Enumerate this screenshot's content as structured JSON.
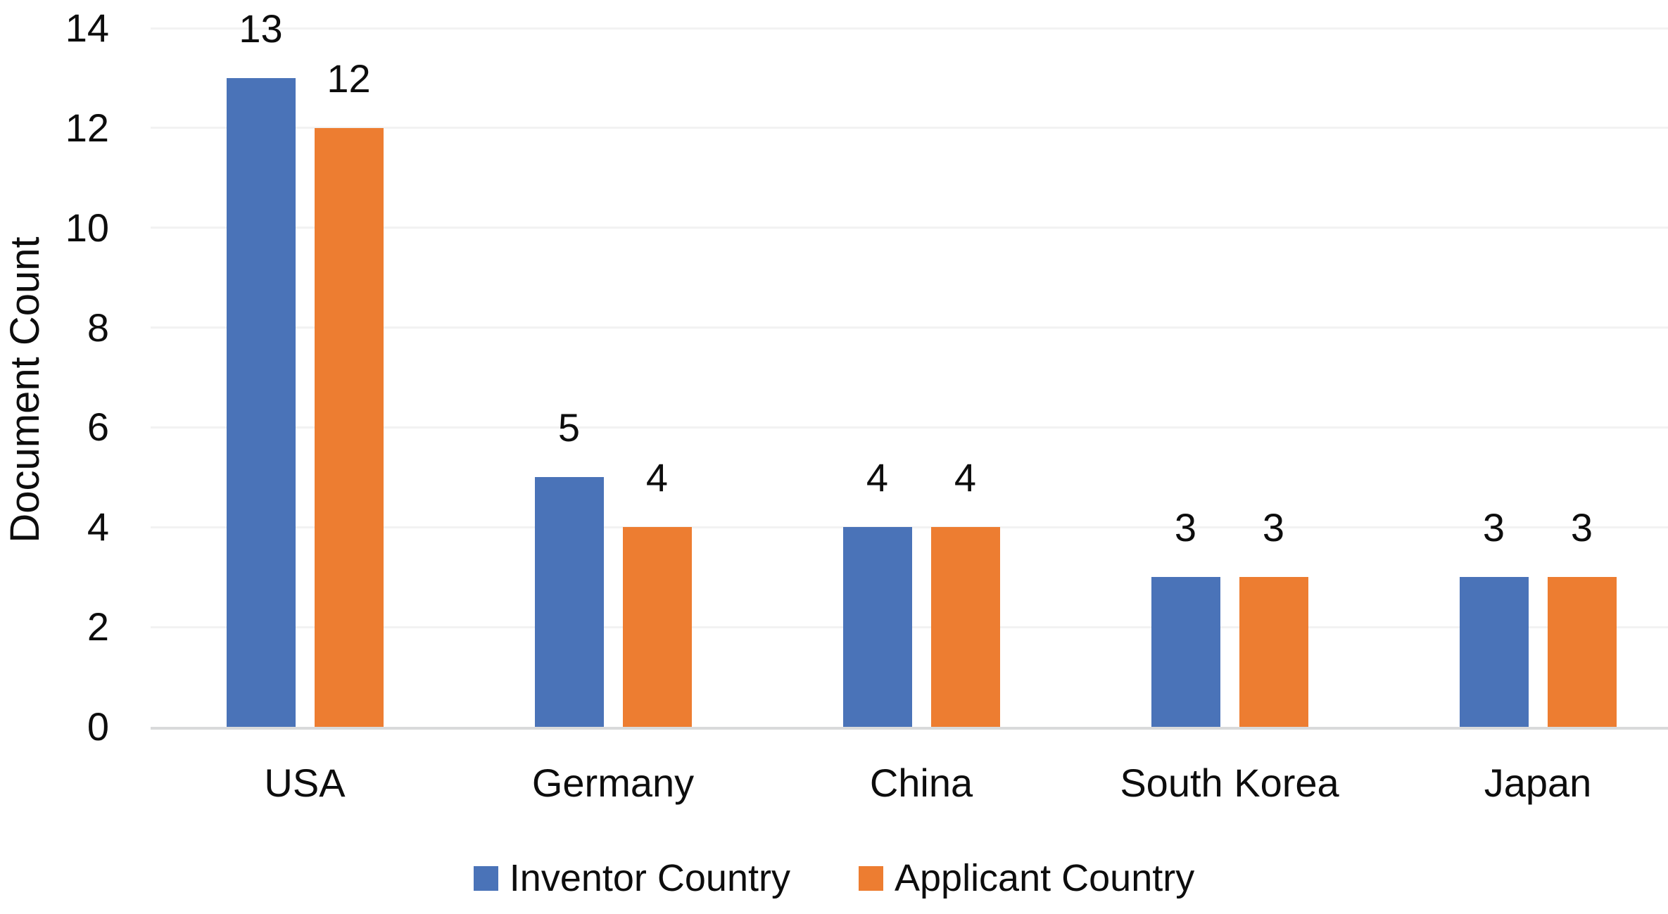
{
  "chart_data": {
    "type": "bar",
    "title": "",
    "ylabel": "Document Count",
    "xlabel": "",
    "categories": [
      "USA",
      "Germany",
      "China",
      "South Korea",
      "Japan"
    ],
    "series": [
      {
        "name": "Inventor Country",
        "color": "#4a73b8",
        "values": [
          13,
          5,
          4,
          3,
          3
        ]
      },
      {
        "name": "Applicant Country",
        "color": "#ed7d31",
        "values": [
          12,
          4,
          4,
          3,
          3
        ]
      }
    ],
    "yticks": [
      0,
      2,
      4,
      6,
      8,
      10,
      12,
      14
    ],
    "ylim": [
      0,
      14
    ],
    "grid": true,
    "data_labels": true,
    "legend_position": "bottom"
  },
  "colors": {
    "gridline": "#f2f2f2",
    "axis_line": "#d9dadb",
    "text": "#0d0d0d",
    "background": "#ffffff"
  }
}
